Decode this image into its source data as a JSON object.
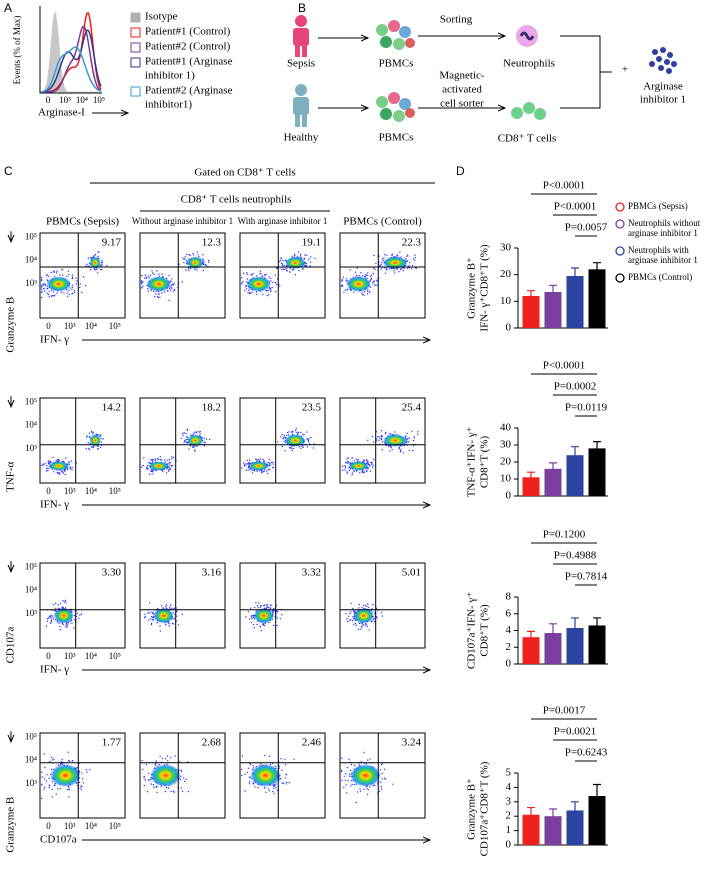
{
  "panel_a": {
    "label": "A",
    "ylabel": "Events (% of Max)",
    "xlabel": "Arginase-I",
    "xticks": [
      "0",
      "10³",
      "10⁴",
      "10⁵"
    ],
    "legend": [
      {
        "name": [
          "Isotype"
        ],
        "color": "#b0b0b0"
      },
      {
        "name": [
          "Patient#1 (Control)"
        ],
        "color": "#e8211d"
      },
      {
        "name": [
          "Patient#2 (Control)"
        ],
        "color": "#7a3a98"
      },
      {
        "name": [
          "Patient#1 (Arginase",
          "inhibitor 1)"
        ],
        "color": "#2f3a8f"
      },
      {
        "name": [
          "Patient#2 (Arginase",
          "inhibitor1)"
        ],
        "color": "#3b9ad6"
      }
    ]
  },
  "panel_b": {
    "label": "B",
    "sepsis": "Sepsis",
    "healthy": "Healthy",
    "pbmcs_top": "PBMCs",
    "pbmcs_bottom": "PBMCs",
    "sorting": "Sorting",
    "neutrophils": "Neutrophils",
    "mac_sorter": [
      "Magnetic-",
      "activated",
      "cell sorter"
    ],
    "cd8": "CD8⁺ T cells",
    "plus": "+",
    "inhibitor": [
      "Arginase",
      "inhibitor 1"
    ]
  },
  "panel_c": {
    "label": "C",
    "header": "Gated on CD8⁺ T cells",
    "subheader": "CD8⁺ T cells neutrophils",
    "columns": [
      {
        "name": "PBMCs (Sepsis)",
        "color": "#f0201e"
      },
      {
        "name": "Without arginase inhibitor 1",
        "color": "#a23aa8"
      },
      {
        "name": "With arginase inhibitor 1",
        "color": "#2d43a0"
      },
      {
        "name": "PBMCs (Control)",
        "color": "#000000"
      }
    ],
    "yticks": [
      "10⁵",
      "10⁴",
      "10³"
    ],
    "xticks": [
      "0",
      "10³",
      "10⁴",
      "10⁵"
    ],
    "rows": [
      {
        "ylabel": "Granzyme B",
        "xlabel": "IFN- γ",
        "values": [
          "9.17",
          "12.3",
          "19.1",
          "22.3"
        ]
      },
      {
        "ylabel": "TNF-α",
        "xlabel": "IFN- γ",
        "values": [
          "14.2",
          "18.2",
          "23.5",
          "25.4"
        ]
      },
      {
        "ylabel": "CD107a",
        "xlabel": "IFN- γ",
        "values": [
          "3.30",
          "3.16",
          "3.32",
          "5.01"
        ]
      },
      {
        "ylabel": "Granzyme B",
        "xlabel": "CD107a",
        "values": [
          "1.77",
          "2.68",
          "2.46",
          "3.24"
        ]
      }
    ]
  },
  "panel_d": {
    "label": "D",
    "legend": [
      {
        "name": [
          "PBMCs (Sepsis)"
        ],
        "color": "#f0201e"
      },
      {
        "name": [
          "Neutrophils without",
          "arginase inhibitor 1"
        ],
        "color": "#7b3f9e"
      },
      {
        "name": [
          "Neutrophils with",
          "arginase inhibitor 1"
        ],
        "color": "#2d43a0"
      },
      {
        "name": [
          "PBMCs (Control)"
        ],
        "color": "#000000"
      }
    ]
  },
  "chart_data": [
    {
      "type": "bar",
      "ylabel": [
        "Granzyme B⁺",
        "IFN- γ⁺CD8⁺T (%)"
      ],
      "values": [
        12,
        13.5,
        19.5,
        22
      ],
      "errors": [
        2,
        2.5,
        3,
        2.5
      ],
      "ylim": [
        0,
        30
      ],
      "yticks": [
        0,
        10,
        20,
        30
      ],
      "annotations": [
        "P<0.0001",
        "P<0.0001",
        "P=0.0057"
      ]
    },
    {
      "type": "bar",
      "ylabel": [
        "TNF-α⁺IFN- γ⁺",
        "CD8⁺T (%)"
      ],
      "values": [
        11,
        16,
        24,
        28
      ],
      "errors": [
        3,
        3.5,
        5,
        4
      ],
      "ylim": [
        0,
        40
      ],
      "yticks": [
        0,
        10,
        20,
        30,
        40
      ],
      "annotations": [
        "P<0.0001",
        "P=0.0002",
        "P=0.0119"
      ]
    },
    {
      "type": "bar",
      "ylabel": [
        "CD107a⁺IFN- γ⁺",
        "CD8⁺T (%)"
      ],
      "values": [
        3.2,
        3.7,
        4.3,
        4.6
      ],
      "errors": [
        0.7,
        1.1,
        1.2,
        0.9
      ],
      "ylim": [
        0,
        8
      ],
      "yticks": [
        0,
        2,
        4,
        6,
        8
      ],
      "annotations": [
        "P=0.1200",
        "P=0.4988",
        "P=0.7814"
      ]
    },
    {
      "type": "bar",
      "ylabel": [
        "Granzyme B⁺",
        "CD107a⁺CD8⁺T (%)"
      ],
      "values": [
        2.1,
        2.0,
        2.4,
        3.4
      ],
      "errors": [
        0.5,
        0.5,
        0.6,
        0.8
      ],
      "ylim": [
        0,
        5
      ],
      "yticks": [
        0,
        1,
        2,
        3,
        4,
        5
      ],
      "annotations": [
        "P=0.0017",
        "P=0.0021",
        "P=0.6243"
      ]
    }
  ]
}
